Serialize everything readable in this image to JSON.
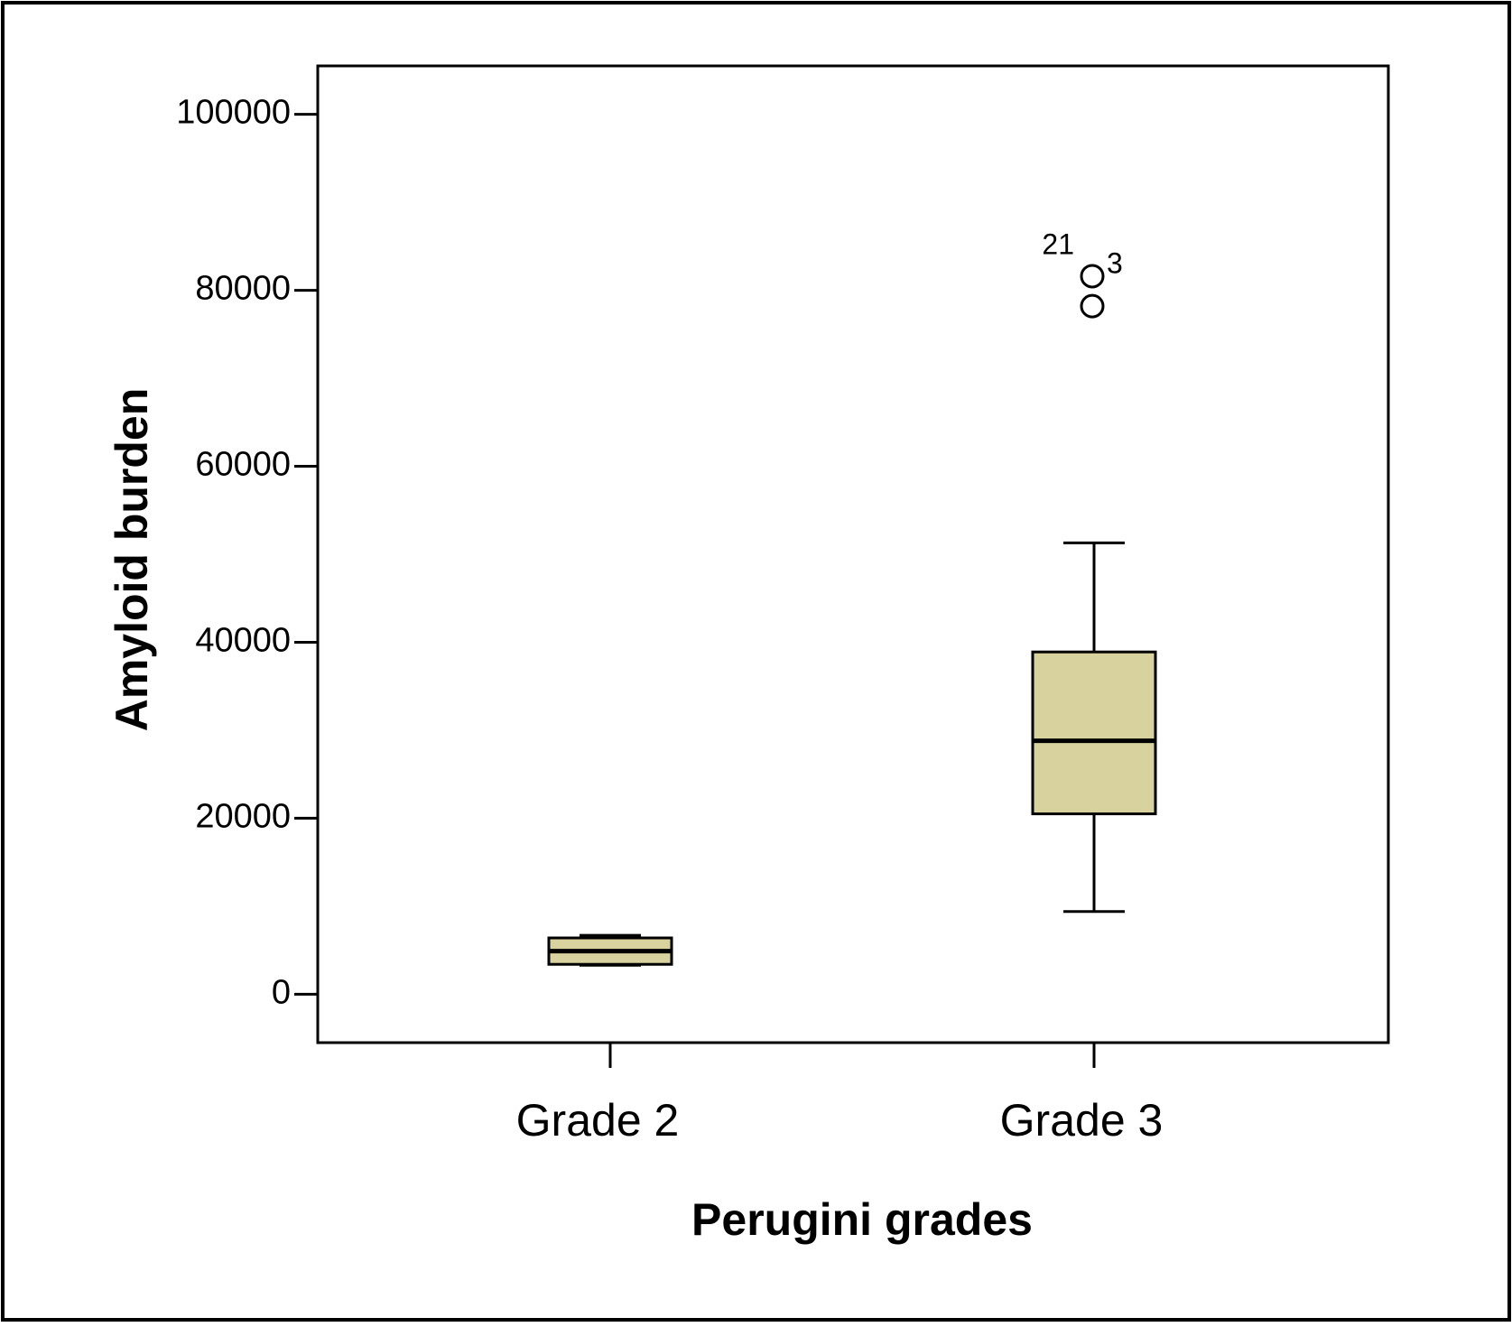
{
  "chart_data": {
    "type": "box",
    "x_label": "Perugini grades",
    "y_label": "Amyloid burden",
    "categories": [
      "Grade 2",
      "Grade 3"
    ],
    "color": "#d7d29e",
    "boxes": [
      {
        "whisker_low": 3300,
        "q1": 3400,
        "median": 4900,
        "q3": 6400,
        "whisker_high": 6700,
        "outliers": []
      },
      {
        "whisker_low": 9400,
        "q1": 20500,
        "median": 28800,
        "q3": 38900,
        "whisker_high": 51300,
        "outliers": [
          {
            "value": 81600,
            "label": "3"
          },
          {
            "value": 78200,
            "label": "21"
          }
        ]
      }
    ],
    "ylim": [
      -5500,
      105500
    ],
    "yticks": [
      0,
      20000,
      40000,
      60000,
      80000,
      100000
    ],
    "grid": false
  }
}
